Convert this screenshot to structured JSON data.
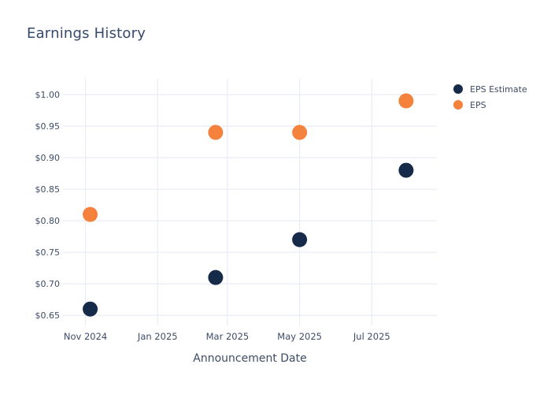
{
  "title": "Earnings History",
  "colors": {
    "background": "#ffffff",
    "grid": "#e9edf5",
    "title_text": "#36496b",
    "tick_text": "#3d4c66",
    "eps_estimate": "#162a4a",
    "eps": "#f5823c"
  },
  "legend": {
    "items": [
      {
        "label": "EPS Estimate",
        "color": "#162a4a"
      },
      {
        "label": "EPS",
        "color": "#f5823c"
      }
    ]
  },
  "chart_data": {
    "type": "scatter",
    "title": "Earnings History",
    "xlabel": "Announcement Date",
    "ylabel": "",
    "grid": true,
    "legend_position": "outside-top-right",
    "marker_diameter_px": 19,
    "x_unit": "days_since_nov_1_2024",
    "x_range_days": [
      -19,
      297
    ],
    "y_range": [
      0.644,
      1.025
    ],
    "x_ticks": [
      {
        "label": "Nov 2024",
        "day": 0
      },
      {
        "label": "Jan 2025",
        "day": 61
      },
      {
        "label": "Mar 2025",
        "day": 120
      },
      {
        "label": "May 2025",
        "day": 181
      },
      {
        "label": "Jul 2025",
        "day": 242
      }
    ],
    "y_ticks": [
      {
        "label": "$0.65",
        "value": 0.65
      },
      {
        "label": "$0.70",
        "value": 0.7
      },
      {
        "label": "$0.75",
        "value": 0.75
      },
      {
        "label": "$0.80",
        "value": 0.8
      },
      {
        "label": "$0.85",
        "value": 0.85
      },
      {
        "label": "$0.90",
        "value": 0.9
      },
      {
        "label": "$0.95",
        "value": 0.95
      },
      {
        "label": "$1.00",
        "value": 1.0
      }
    ],
    "series": [
      {
        "name": "EPS Estimate",
        "color": "#162a4a",
        "points": [
          {
            "day": 4,
            "value": 0.66
          },
          {
            "day": 110,
            "value": 0.71
          },
          {
            "day": 181,
            "value": 0.77
          },
          {
            "day": 271,
            "value": 0.88
          }
        ]
      },
      {
        "name": "EPS",
        "color": "#f5823c",
        "points": [
          {
            "day": 4,
            "value": 0.81
          },
          {
            "day": 110,
            "value": 0.94
          },
          {
            "day": 181,
            "value": 0.94
          },
          {
            "day": 271,
            "value": 0.99
          }
        ]
      }
    ]
  }
}
